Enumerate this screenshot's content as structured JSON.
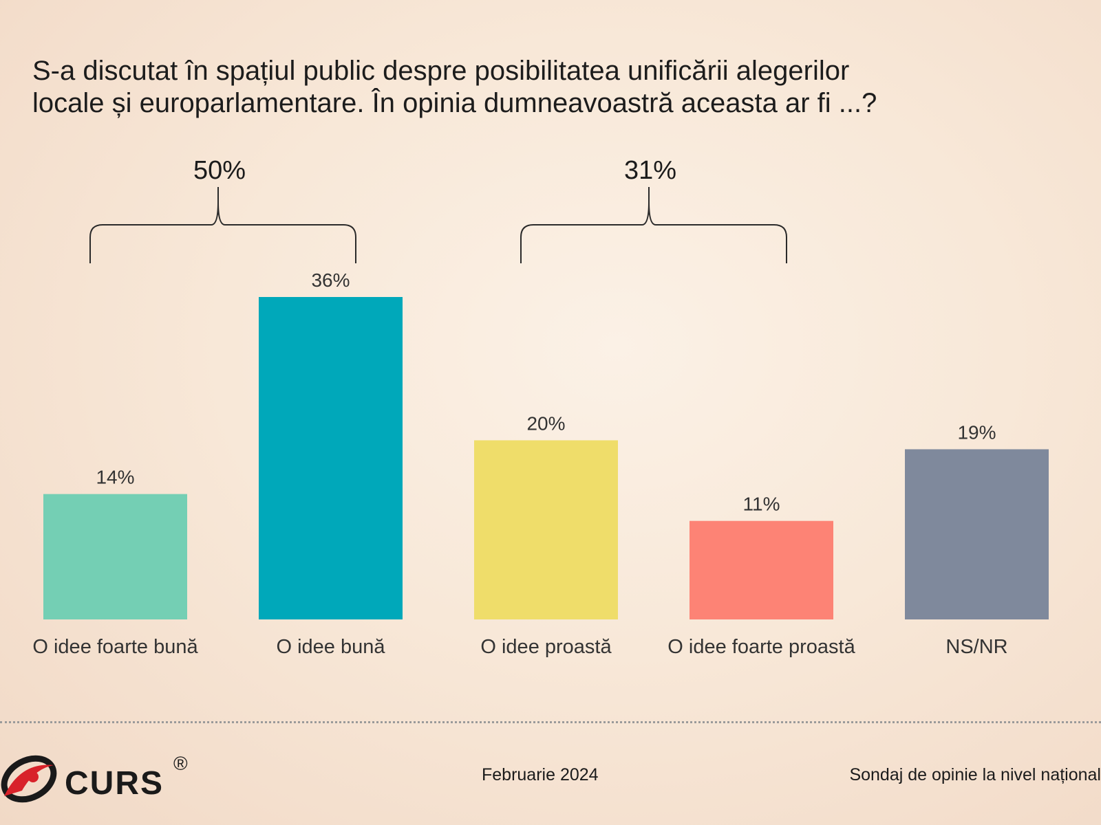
{
  "title_lines": [
    "S-a discutat în spațiul public despre posibilitatea unificării alegerilor",
    "locale și europarlamentare. În opinia dumneavoastră aceasta ar fi ...?"
  ],
  "chart_data": {
    "type": "bar",
    "categories": [
      "O idee foarte bună",
      "O idee bună",
      "O idee proastă",
      "O idee foarte proastă",
      "NS/NR"
    ],
    "values": [
      14,
      36,
      20,
      11,
      19
    ],
    "value_labels": [
      "14%",
      "36%",
      "20%",
      "11%",
      "19%"
    ],
    "colors": [
      "#74cfb4",
      "#00a8ba",
      "#efdd6a",
      "#fd8375",
      "#7f899c"
    ],
    "ylim": [
      0,
      36
    ],
    "grid": false,
    "groups": [
      {
        "label": "50%",
        "from": 0,
        "to": 1
      },
      {
        "label": "31%",
        "from": 2,
        "to": 3
      }
    ]
  },
  "footer": {
    "logo_text": "CURS",
    "logo_mark": "®",
    "date": "Februarie 2024",
    "source": "Sondaj de opinie la nivel național"
  },
  "colors": {
    "logo_red": "#d8222a",
    "logo_dark": "#1a1a1a"
  }
}
